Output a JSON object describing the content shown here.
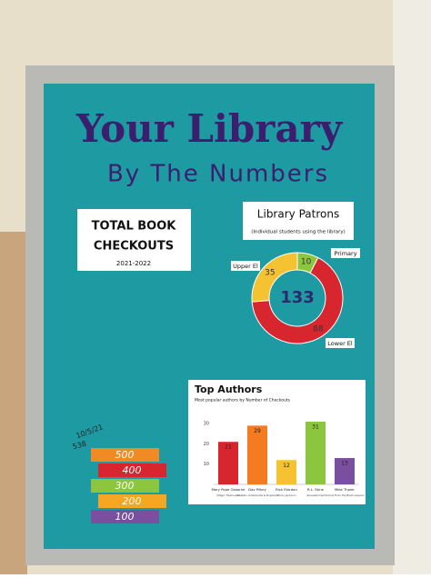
{
  "board": {
    "title": "Your Library",
    "subtitle": "By The Numbers"
  },
  "checkouts": {
    "title_line1": "TOTAL BOOK",
    "title_line2": "CHECKOUTS",
    "years": "2021-2022",
    "goal_blocks": [
      500,
      400,
      300,
      200,
      100
    ],
    "goal_colors": [
      "#f08a24",
      "#d8262f",
      "#8cc63f",
      "#f5a623",
      "#7a4fa0"
    ],
    "note_date": "10/5/21",
    "note_count": 538
  },
  "chart_data": [
    {
      "type": "donut",
      "title": "Library Patrons",
      "subtitle": "(Individual students using the library)",
      "categories": [
        "Primary",
        "Lower El",
        "Upper El"
      ],
      "values": [
        10,
        88,
        35
      ],
      "colors": [
        "#8cc63f",
        "#d8262f",
        "#f5c232"
      ],
      "center_label": 133
    },
    {
      "type": "bar",
      "title": "Top Authors",
      "subtitle": "Most popular authors by Number of Checkouts",
      "categories": [
        "Mary Pope Osborne",
        "Dav Pilkey",
        "Rick Riordan",
        "R.L. Stine",
        "Mike Thaler"
      ],
      "category_notes": [
        "(Magic Treehouse)",
        "(Captain Underpants & Dogman)",
        "(Percy Jackson)",
        "(Goosebumps)",
        "(School From the Black Lagoon)"
      ],
      "values": [
        21,
        29,
        12,
        31,
        13
      ],
      "colors": [
        "#d8262f",
        "#f47b20",
        "#f5c232",
        "#8cc63f",
        "#7a4fa0"
      ],
      "ylim": [
        0,
        35
      ],
      "yticks": [
        10,
        20,
        30
      ],
      "grid": false
    }
  ]
}
